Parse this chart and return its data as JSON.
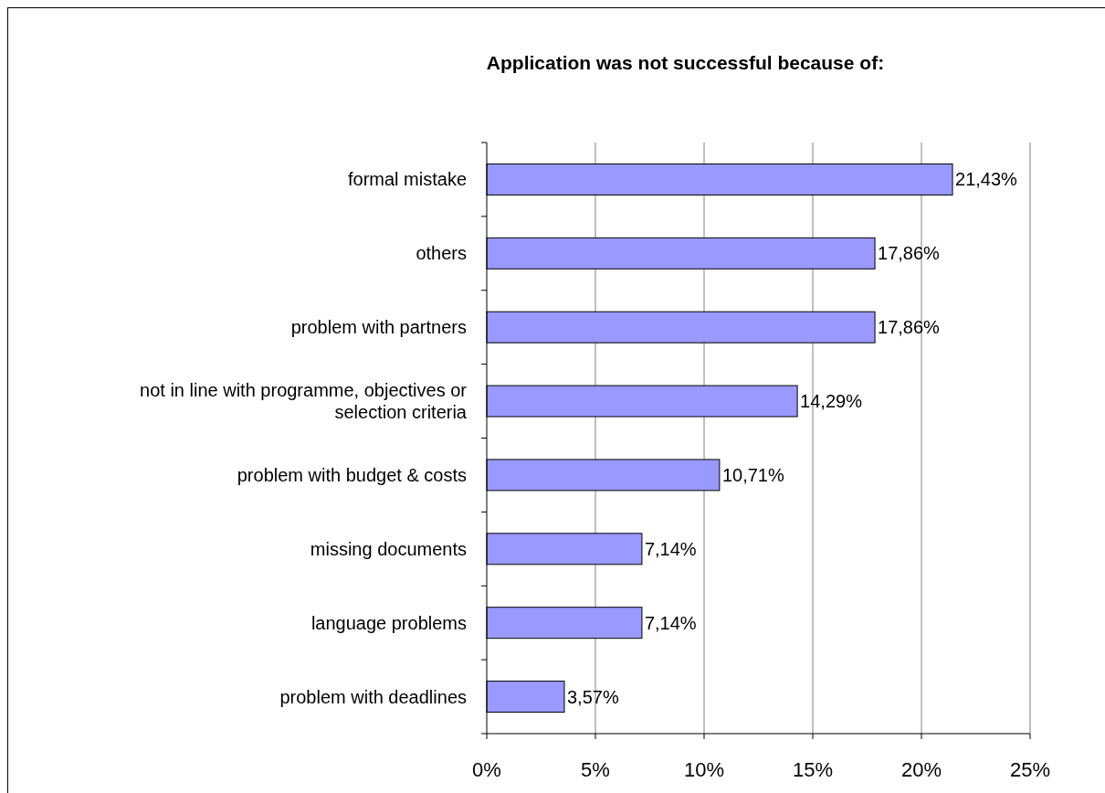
{
  "chart_data": {
    "type": "bar",
    "orientation": "horizontal",
    "title": "Application was not successful because of:",
    "categories": [
      "formal mistake",
      "others",
      "problem with partners",
      "not in line with programme, objectives or selection criteria",
      "problem with budget & costs",
      "missing documents",
      "language problems",
      "problem with deadlines"
    ],
    "values": [
      21.43,
      17.86,
      17.86,
      14.29,
      10.71,
      7.14,
      7.14,
      3.57
    ],
    "value_labels": [
      "21,43%",
      "17,86%",
      "17,86%",
      "14,29%",
      "10,71%",
      "7,14%",
      "7,14%",
      "3,57%"
    ],
    "color": "#9999ff",
    "xlim": [
      0,
      25
    ],
    "xticks": [
      {
        "value": 0,
        "label": "0%"
      },
      {
        "value": 5,
        "label": "5%"
      },
      {
        "value": 10,
        "label": "10%"
      },
      {
        "value": 15,
        "label": "15%"
      },
      {
        "value": 20,
        "label": "20%"
      },
      {
        "value": 25,
        "label": "25%"
      }
    ],
    "grid": "x"
  }
}
